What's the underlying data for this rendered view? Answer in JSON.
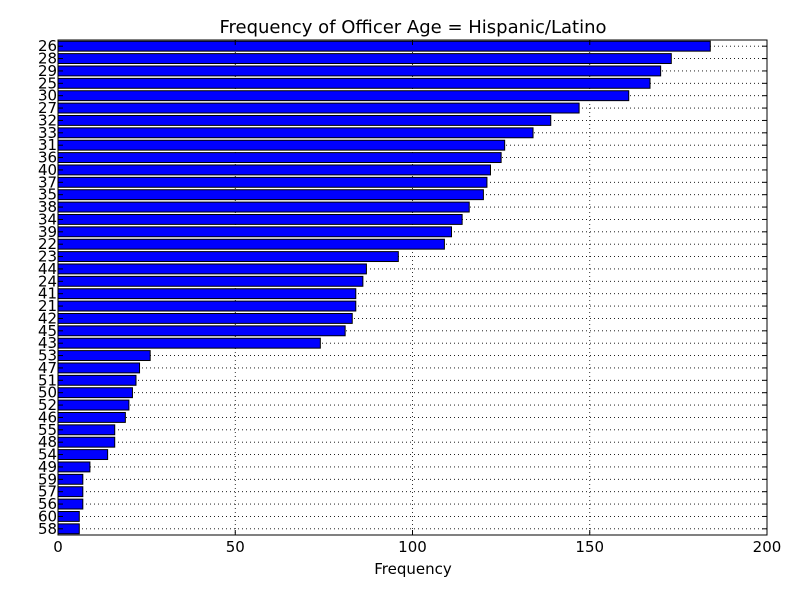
{
  "chart_data": {
    "type": "bar",
    "orientation": "horizontal",
    "title": "Frequency of Officer Age = Hispanic/Latino",
    "xlabel": "Frequency",
    "ylabel": "",
    "xlim": [
      0,
      200
    ],
    "xticks": [
      0,
      50,
      100,
      150,
      200
    ],
    "grid": true,
    "bar_color": "#0000ff",
    "categories": [
      "26",
      "28",
      "29",
      "25",
      "30",
      "27",
      "32",
      "33",
      "31",
      "36",
      "40",
      "37",
      "35",
      "38",
      "34",
      "39",
      "22",
      "23",
      "44",
      "24",
      "41",
      "21",
      "42",
      "45",
      "43",
      "53",
      "47",
      "51",
      "50",
      "52",
      "46",
      "55",
      "48",
      "54",
      "49",
      "59",
      "57",
      "56",
      "60",
      "58"
    ],
    "values": [
      184,
      173,
      170,
      167,
      161,
      147,
      139,
      134,
      126,
      125,
      122,
      121,
      120,
      116,
      114,
      111,
      109,
      96,
      87,
      86,
      84,
      84,
      83,
      81,
      74,
      26,
      23,
      22,
      21,
      20,
      19,
      16,
      16,
      14,
      9,
      7,
      7,
      7,
      6,
      6
    ]
  }
}
